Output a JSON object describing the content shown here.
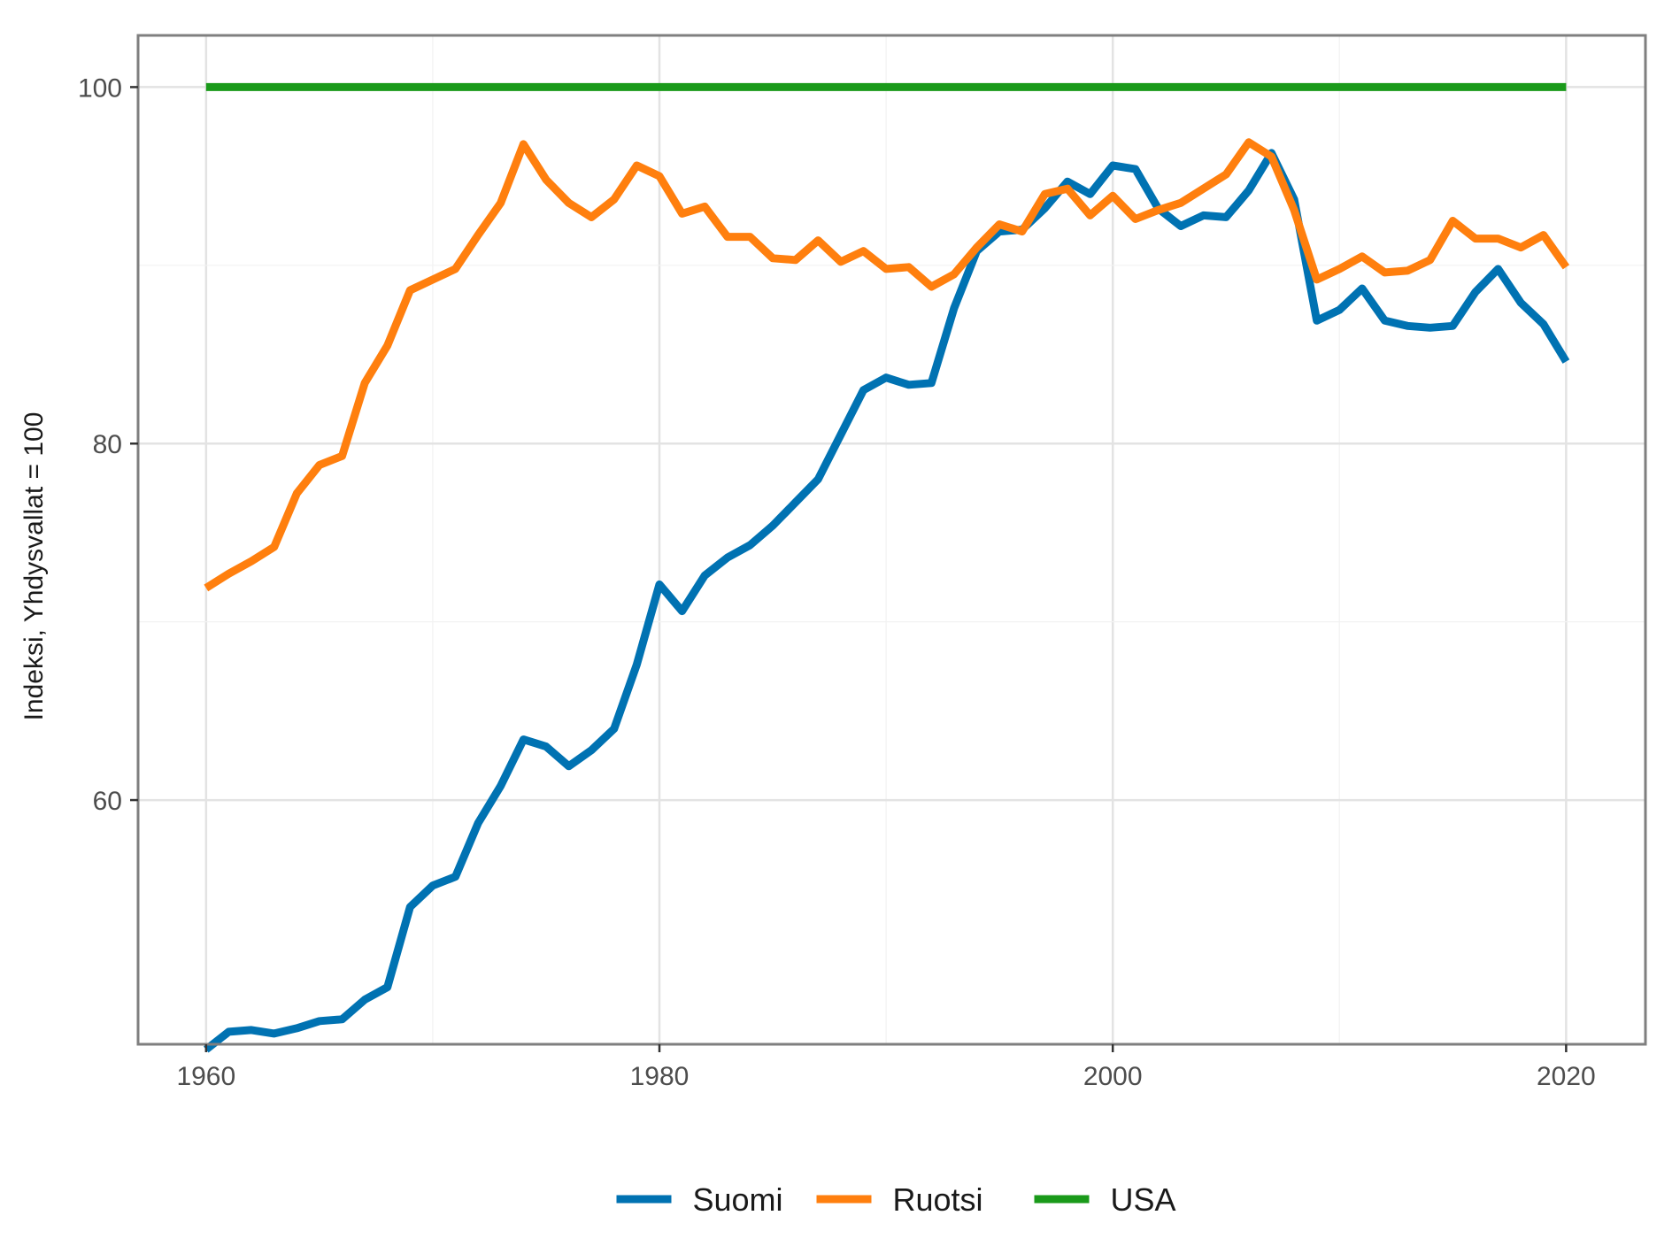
{
  "chart_data": {
    "type": "line",
    "title": "",
    "xlabel": "",
    "ylabel": "Indeksi, Yhdysvallat = 100",
    "xlim": [
      1957,
      2023.5
    ],
    "ylim": [
      46.3,
      102.9
    ],
    "x_ticks": [
      1960,
      1980,
      2000,
      2020
    ],
    "x_tick_labels": [
      "1960",
      "1980",
      "2000",
      "2020"
    ],
    "y_ticks": [
      60,
      80,
      100
    ],
    "y_tick_labels": [
      "60",
      "80",
      "100"
    ],
    "grid": true,
    "legend_position": "bottom",
    "x": [
      1960,
      1961,
      1962,
      1963,
      1964,
      1965,
      1966,
      1967,
      1968,
      1969,
      1970,
      1971,
      1972,
      1973,
      1974,
      1975,
      1976,
      1977,
      1978,
      1979,
      1980,
      1981,
      1982,
      1983,
      1984,
      1985,
      1986,
      1987,
      1988,
      1989,
      1990,
      1991,
      1992,
      1993,
      1994,
      1995,
      1996,
      1997,
      1998,
      1999,
      2000,
      2001,
      2002,
      2003,
      2004,
      2005,
      2006,
      2007,
      2008,
      2009,
      2010,
      2011,
      2012,
      2013,
      2014,
      2015,
      2016,
      2017,
      2018,
      2019,
      2020
    ],
    "series": [
      {
        "name": "Suomi",
        "color": "#0072B2",
        "values": [
          46.0,
          47.0,
          47.1,
          46.9,
          47.2,
          47.6,
          47.7,
          48.8,
          49.5,
          54.0,
          55.2,
          55.7,
          58.7,
          60.8,
          63.4,
          63.0,
          61.9,
          62.8,
          64.0,
          67.6,
          72.1,
          70.6,
          72.6,
          73.6,
          74.3,
          75.4,
          76.7,
          78.0,
          80.5,
          83.0,
          83.7,
          83.3,
          83.4,
          87.6,
          90.8,
          91.9,
          92.0,
          93.2,
          94.7,
          94.0,
          95.6,
          95.4,
          93.2,
          92.2,
          92.8,
          92.7,
          94.2,
          96.3,
          93.7,
          86.9,
          87.5,
          88.7,
          86.9,
          86.6,
          86.5,
          86.6,
          88.5,
          89.8,
          87.9,
          86.7,
          84.6
        ]
      },
      {
        "name": "Ruotsi",
        "color": "#FF7F0E",
        "values": [
          71.9,
          72.7,
          73.4,
          74.2,
          77.2,
          78.8,
          79.3,
          83.4,
          85.5,
          88.6,
          89.2,
          89.8,
          91.7,
          93.5,
          96.8,
          94.8,
          93.5,
          92.7,
          93.7,
          95.6,
          95.0,
          92.9,
          93.3,
          91.6,
          91.6,
          90.4,
          90.3,
          91.4,
          90.2,
          90.8,
          89.8,
          89.9,
          88.8,
          89.5,
          91.0,
          92.3,
          91.9,
          94.0,
          94.3,
          92.8,
          93.9,
          92.6,
          93.1,
          93.5,
          94.3,
          95.1,
          96.9,
          96.1,
          93.1,
          89.2,
          89.8,
          90.5,
          89.6,
          89.7,
          90.3,
          92.5,
          91.5,
          91.5,
          91.0,
          91.7,
          89.9
        ]
      },
      {
        "name": "USA",
        "color": "#1A9A1A",
        "values": [
          100,
          100,
          100,
          100,
          100,
          100,
          100,
          100,
          100,
          100,
          100,
          100,
          100,
          100,
          100,
          100,
          100,
          100,
          100,
          100,
          100,
          100,
          100,
          100,
          100,
          100,
          100,
          100,
          100,
          100,
          100,
          100,
          100,
          100,
          100,
          100,
          100,
          100,
          100,
          100,
          100,
          100,
          100,
          100,
          100,
          100,
          100,
          100,
          100,
          100,
          100,
          100,
          100,
          100,
          100,
          100,
          100,
          100,
          100,
          100,
          100
        ]
      }
    ]
  }
}
